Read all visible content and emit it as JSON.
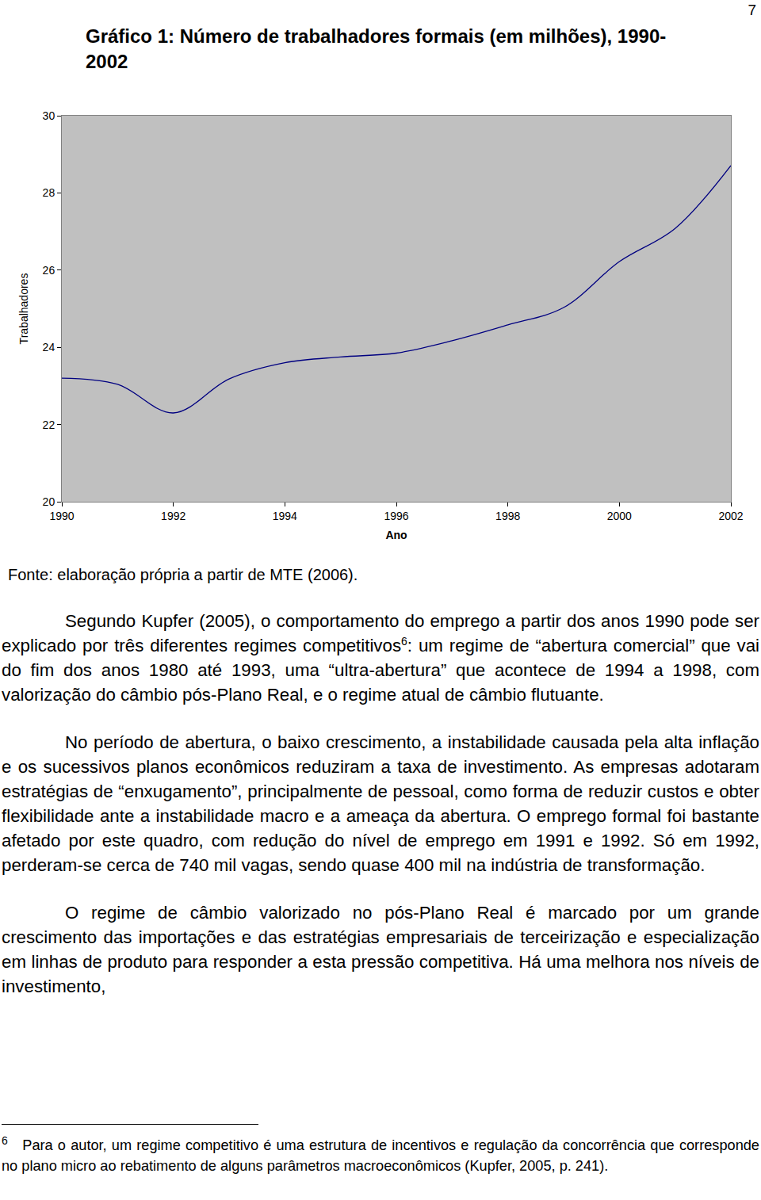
{
  "page_number": "7",
  "chart_data": {
    "type": "line",
    "title": "Gráfico 1: Número de trabalhadores formais (em milhões), 1990-2002",
    "x_label": "Ano",
    "y_label": "Trabalhadores",
    "x": [
      1990,
      1991,
      1992,
      1993,
      1994,
      1995,
      1996,
      1997,
      1998,
      1999,
      2000,
      2001,
      2002
    ],
    "values": [
      23.2,
      23.04,
      22.3,
      23.18,
      23.6,
      23.75,
      23.85,
      24.17,
      24.58,
      25.03,
      26.22,
      27.08,
      28.71
    ],
    "color": "#000080",
    "xlim": [
      1990,
      2002
    ],
    "xticks": [
      1990,
      1992,
      1994,
      1996,
      1998,
      2000,
      2002
    ],
    "ylim": [
      20,
      30
    ],
    "yticks": [
      20,
      22,
      24,
      26,
      28,
      30
    ],
    "grid": false
  },
  "source": "Fonte: elaboração própria a partir de MTE (2006).",
  "paragraphs": [
    [
      {
        "text": "Segundo Kupfer (2005), o comportamento do emprego a partir dos anos 1990 pode ser explicado por três diferentes regimes competitivos"
      },
      {
        "sup": "6"
      },
      {
        "text": ": um regime de “abertura comercial” que vai do fim dos anos 1980 até 1993, uma “ultra-abertura” que acontece de 1994 a 1998, com valorização do câmbio pós-Plano Real, e o regime atual de câmbio flutuante."
      }
    ],
    [
      {
        "text": "No período de abertura, o baixo crescimento, a instabilidade causada pela alta inflação e os sucessivos planos econômicos reduziram a taxa de investimento. As empresas adotaram estratégias de “enxugamento”, principalmente de pessoal, como forma de reduzir custos e obter flexibilidade ante a instabilidade macro e a ameaça da abertura. O emprego formal foi bastante afetado por este quadro, com redução do nível de emprego em 1991 e 1992. Só em 1992, perderam-se cerca de 740 mil vagas, sendo quase 400 mil na indústria de transformação."
      }
    ],
    [
      {
        "text": "O regime de câmbio valorizado no pós-Plano Real é marcado por um grande crescimento das importações e das estratégias empresariais de terceirização e especialização em linhas de produto para responder a esta pressão competitiva. Há uma melhora nos níveis de investimento,"
      }
    ]
  ],
  "footnote": {
    "marker": "6",
    "text": "Para o autor, um regime competitivo é uma estrutura de incentivos e regulação da concorrência que corresponde no plano micro ao rebatimento de alguns parâmetros macroeconômicos (Kupfer, 2005, p. 241)."
  }
}
